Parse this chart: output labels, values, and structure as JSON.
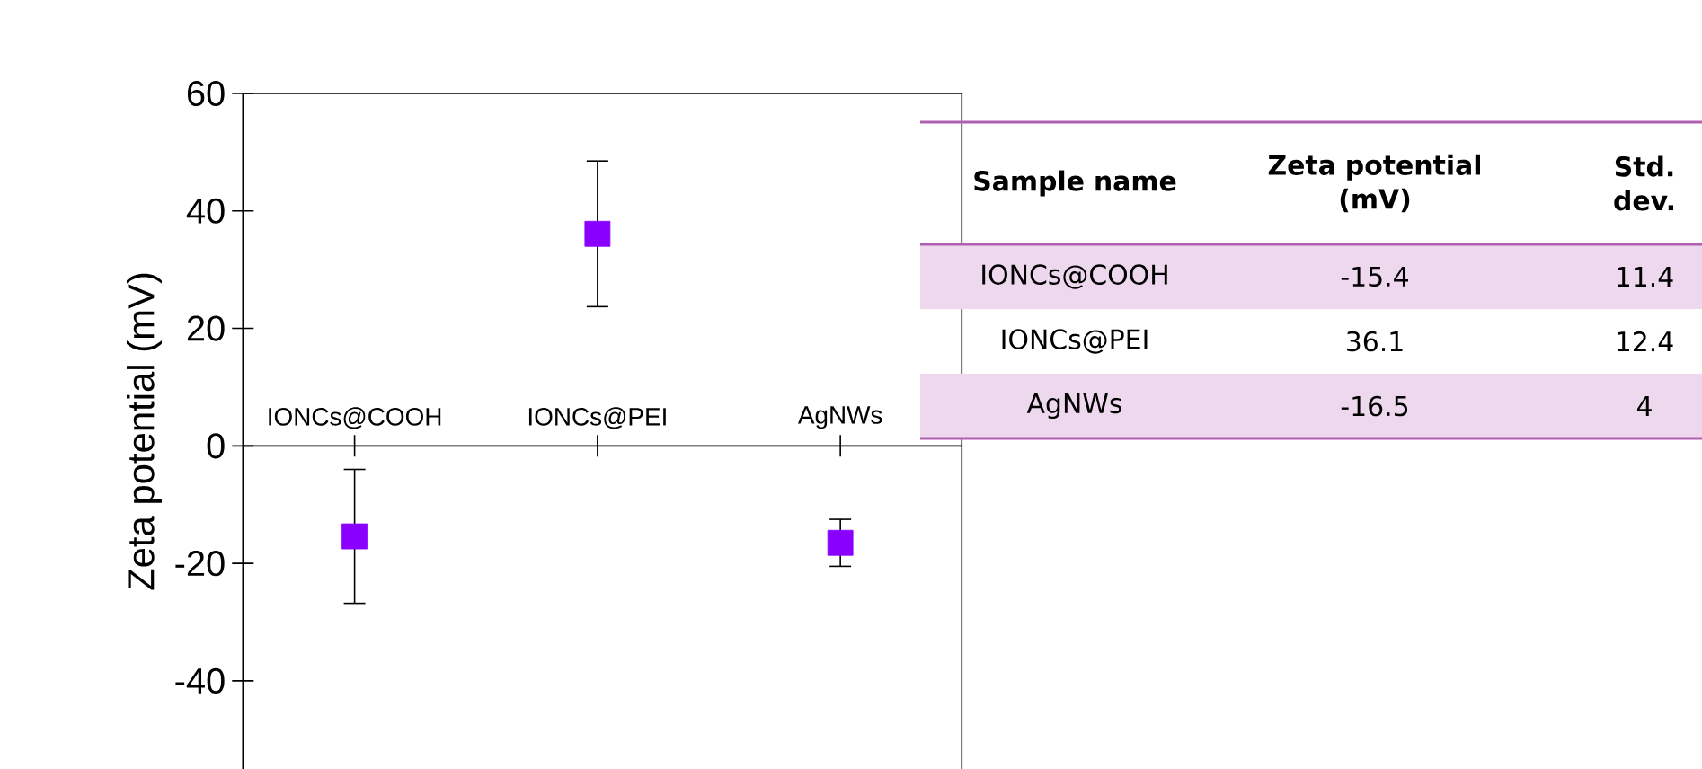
{
  "chart_data": [
    {
      "type": "scatter",
      "ylabel": "Zeta potential (mV)",
      "categories": [
        "IONCs@COOH",
        "IONCs@PEI",
        "AgNWs"
      ],
      "values": [
        -15.4,
        36.1,
        -16.5
      ],
      "errors": [
        11.4,
        12.4,
        4
      ],
      "color": "#8a00ff",
      "marker": "square",
      "ylim": [
        -55,
        60
      ],
      "yticks": [
        -40,
        -20,
        0,
        20,
        40,
        60
      ]
    },
    {
      "type": "other",
      "annotations": [
        "Sample name",
        "Zeta potential (mV)",
        "Std. dev.",
        "IONCs@COOH",
        "-15.4",
        "11.4",
        "IONCs@PEI",
        "36.1",
        "12.4",
        "AgNWs",
        "-16.5",
        "4"
      ]
    }
  ]
}
